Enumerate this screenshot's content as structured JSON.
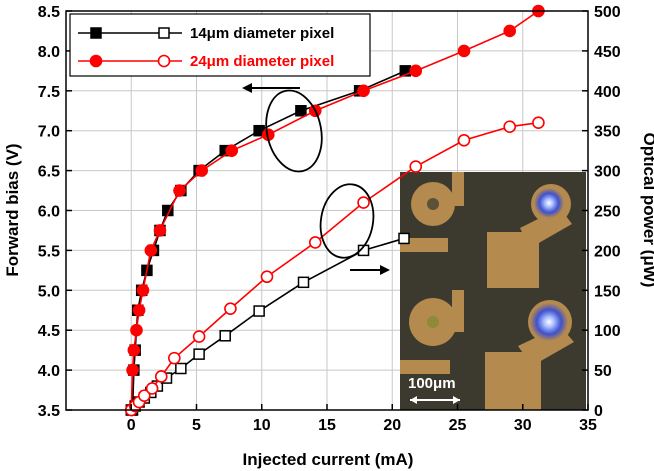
{
  "chart_data": {
    "type": "line",
    "xlabel": "Injected current (mA)",
    "ylabel_left": "Forward bias (V)",
    "ylabel_right": "Optical power (μW)",
    "xlim": [
      -5,
      35
    ],
    "ylim_left": [
      3.5,
      8.5
    ],
    "ylim_right": [
      0,
      500
    ],
    "x_ticks": [
      0,
      5,
      10,
      15,
      20,
      25,
      30,
      35
    ],
    "x_tick_labels": [
      "0",
      "5",
      "10",
      "15",
      "20",
      "25",
      "30",
      "35"
    ],
    "y_left_ticks": [
      3.5,
      4.0,
      4.5,
      5.0,
      5.5,
      6.0,
      6.5,
      7.0,
      7.5,
      8.0,
      8.5
    ],
    "y_left_tick_labels": [
      "3.5",
      "4.0",
      "4.5",
      "5.0",
      "5.5",
      "6.0",
      "6.5",
      "7.0",
      "7.5",
      "8.0",
      "8.5"
    ],
    "y_right_ticks": [
      0,
      50,
      100,
      150,
      200,
      250,
      300,
      350,
      400,
      450,
      500
    ],
    "y_right_tick_labels": [
      "0",
      "50",
      "100",
      "150",
      "200",
      "250",
      "300",
      "350",
      "400",
      "450",
      "500"
    ],
    "grid": true,
    "legend_position": "top-left",
    "series": [
      {
        "name": "14μm diameter pixel",
        "axis": "left",
        "color": "#000000",
        "marker": "square-filled",
        "x": [
          0.1,
          0.2,
          0.3,
          0.5,
          0.8,
          1.2,
          1.7,
          2.2,
          2.8,
          3.8,
          5.2,
          7.2,
          9.8,
          13.0,
          17.5,
          21.0
        ],
        "y": [
          3.5,
          4.0,
          4.25,
          4.75,
          5.0,
          5.25,
          5.5,
          5.75,
          6.0,
          6.25,
          6.5,
          6.75,
          7.0,
          7.25,
          7.5,
          7.75
        ]
      },
      {
        "name": "",
        "axis": "right",
        "color": "#000000",
        "marker": "square-open",
        "x": [
          0.0,
          0.3,
          0.6,
          1.0,
          1.5,
          2.0,
          2.7,
          3.8,
          5.2,
          7.2,
          9.8,
          13.2,
          17.8,
          20.9
        ],
        "y": [
          0,
          5,
          10,
          15,
          22,
          30,
          40,
          52,
          70,
          93,
          124,
          160,
          200,
          215
        ]
      },
      {
        "name": "24μm diameter pixel",
        "axis": "left",
        "color": "#ff0000",
        "marker": "circle-filled",
        "x": [
          0.0,
          0.1,
          0.2,
          0.4,
          0.6,
          0.9,
          1.5,
          2.2,
          3.7,
          5.4,
          7.7,
          10.5,
          14.1,
          17.8,
          21.8,
          25.5,
          29.0,
          31.2
        ],
        "y": [
          3.5,
          4.0,
          4.25,
          4.5,
          4.75,
          5.0,
          5.5,
          5.75,
          6.25,
          6.5,
          6.75,
          6.95,
          7.25,
          7.5,
          7.75,
          8.0,
          8.25,
          8.5
        ]
      },
      {
        "name": "",
        "axis": "right",
        "color": "#ff0000",
        "marker": "circle-open",
        "x": [
          0.0,
          0.3,
          0.6,
          1.0,
          1.6,
          2.3,
          3.3,
          5.2,
          7.6,
          10.4,
          14.1,
          17.8,
          21.8,
          25.5,
          29.0,
          31.2
        ],
        "y": [
          0,
          5,
          10,
          18,
          27,
          42,
          65,
          92,
          127,
          167,
          210,
          260,
          305,
          338,
          355,
          360
        ]
      }
    ],
    "annotations": {
      "inset_scale_label": "100μm"
    }
  }
}
